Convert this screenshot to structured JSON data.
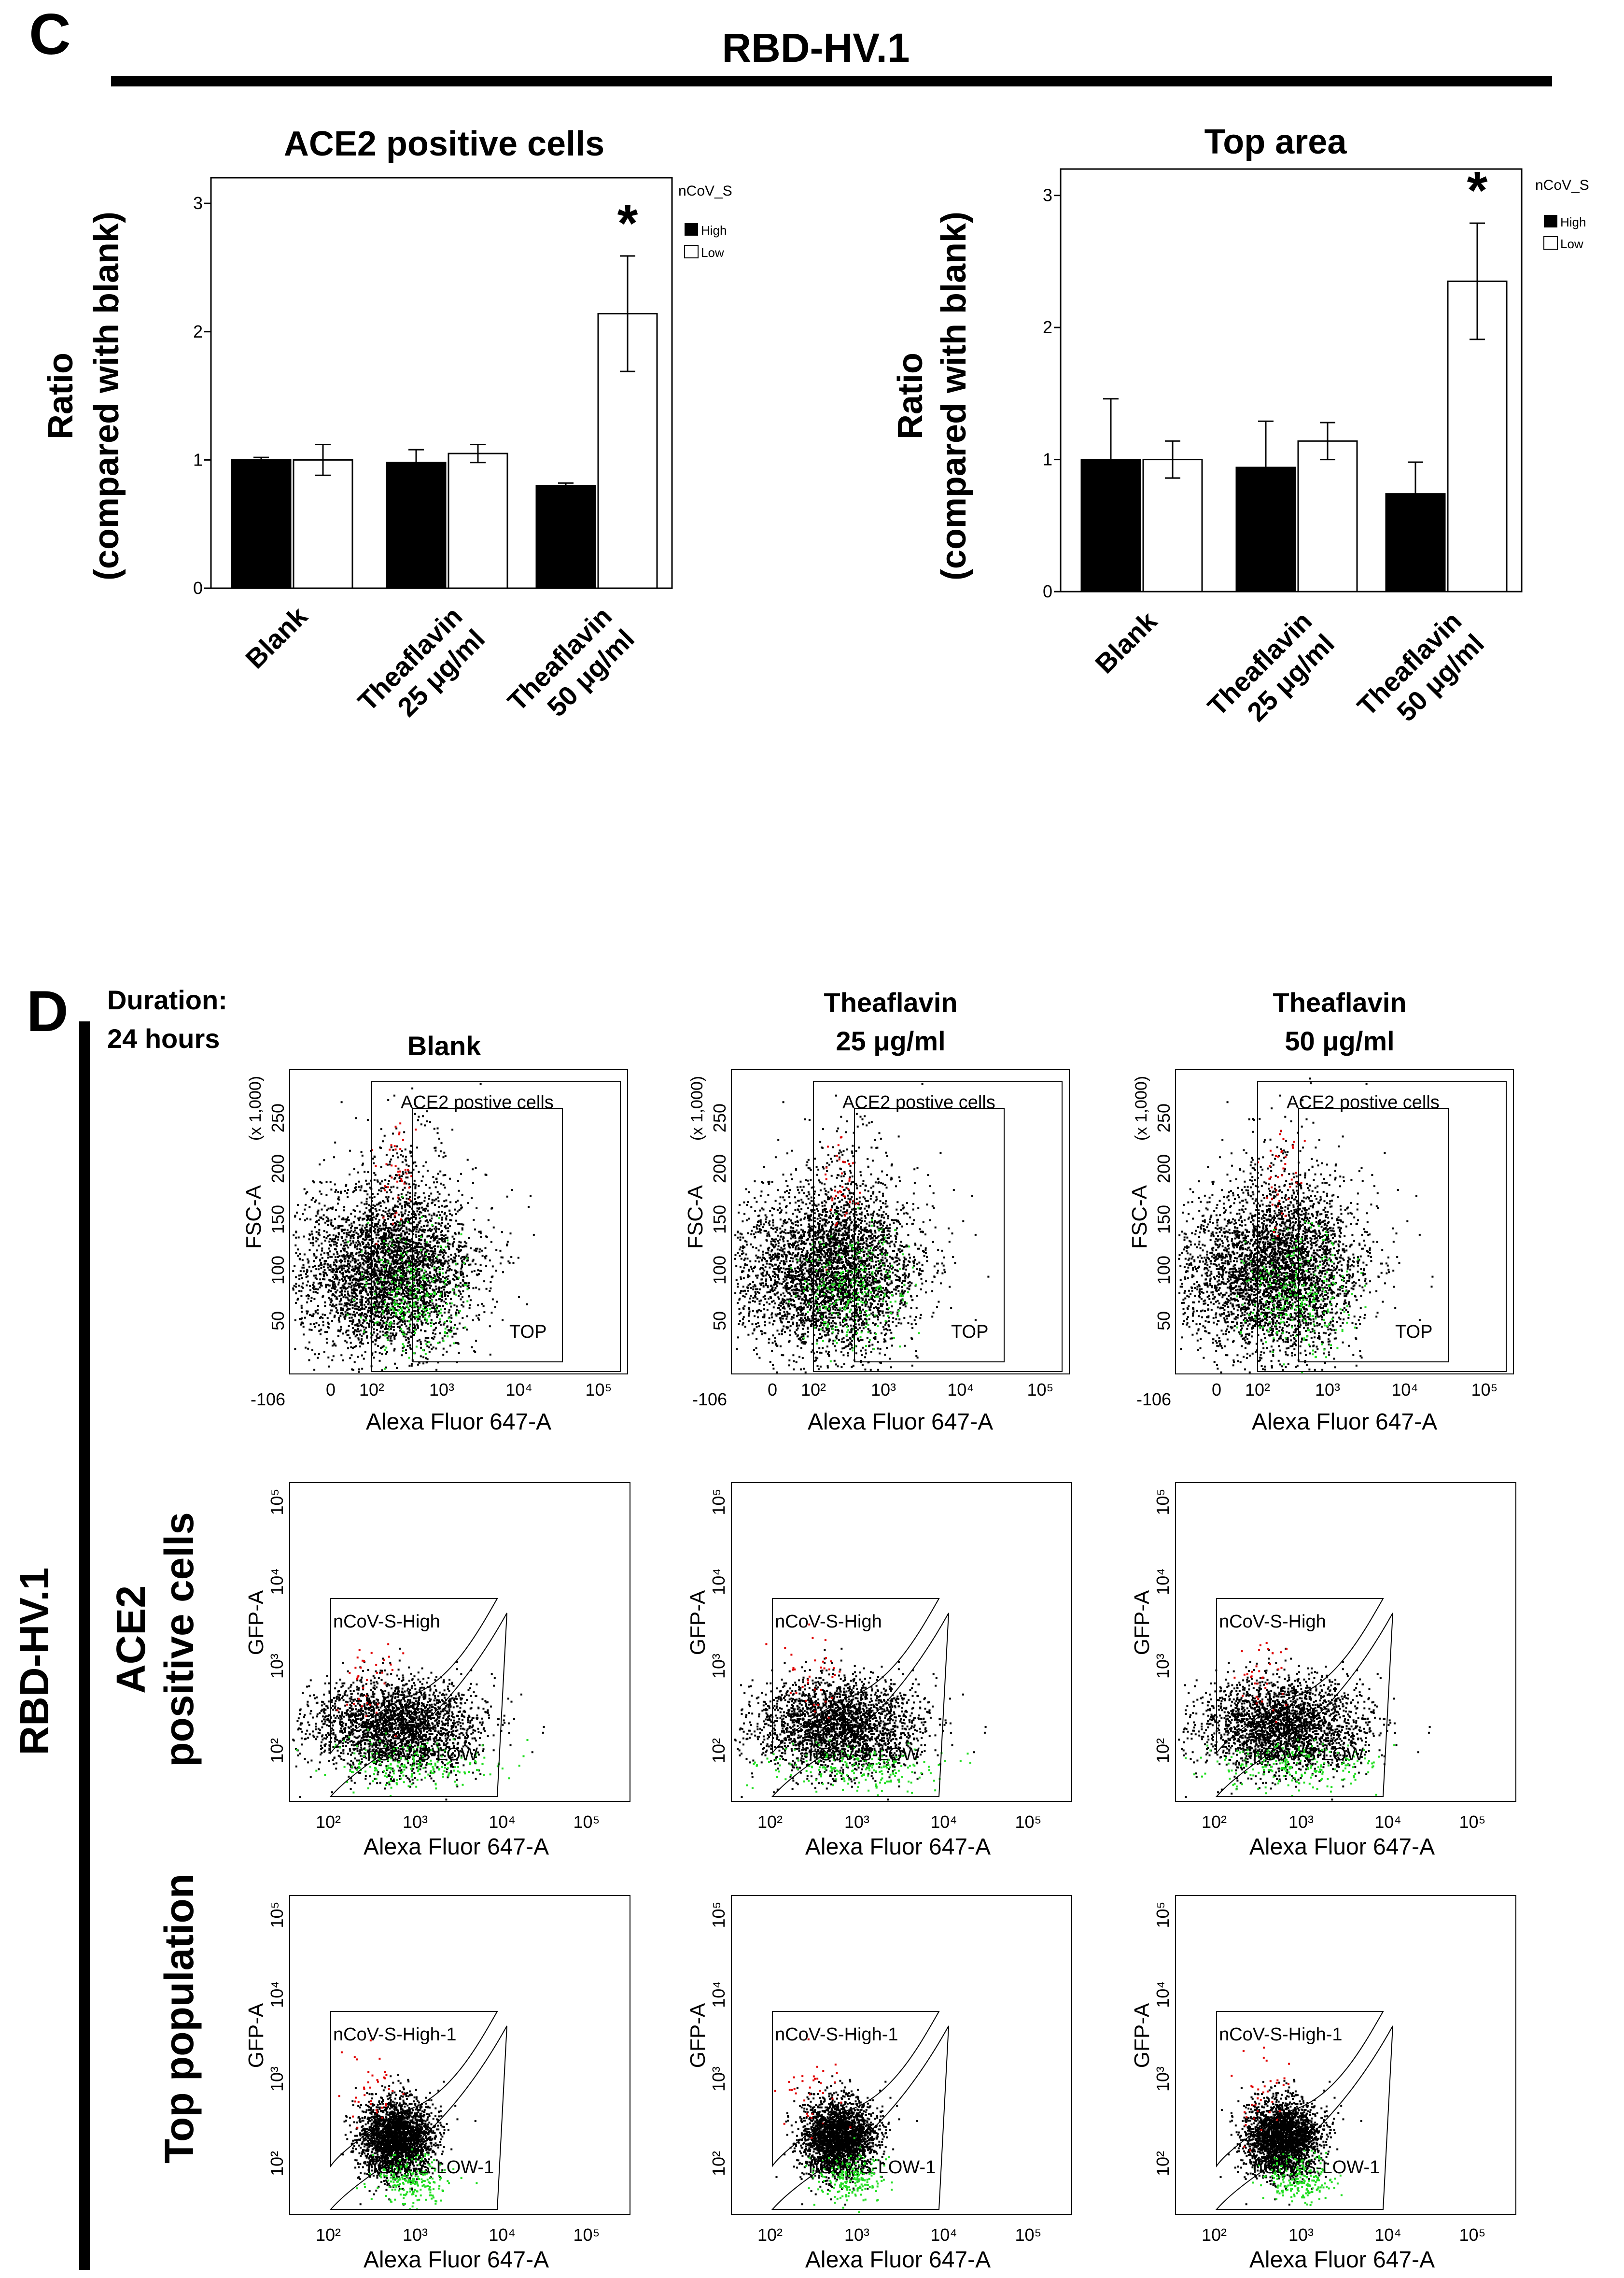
{
  "panel_c": {
    "letter": "C",
    "title": "RBD-HV.1",
    "y_axis_label_line1": "Ratio",
    "y_axis_label_line2": "(compared with blank)",
    "legend_title": "nCoV_S",
    "legend_items": [
      "High",
      "Low"
    ]
  },
  "panel_d": {
    "letter": "D",
    "side_label": "RBD-HV.1",
    "duration_line1": "Duration:",
    "duration_line2": "24 hours",
    "column_headers": [
      {
        "line1": "",
        "line2": "Blank"
      },
      {
        "line1": "Theaflavin",
        "line2": "25 μg/ml"
      },
      {
        "line1": "Theaflavin",
        "line2": "50 μg/ml"
      }
    ],
    "row_labels": [
      {
        "line1": "ACE2",
        "line2": "positive cells"
      },
      {
        "line1": "Top population",
        "line2": ""
      }
    ],
    "scatter_x_label": "Alexa Fluor 647-A",
    "fsc_y_label": "FSC-A",
    "fsc_y_multiplier": "(x 1,000)",
    "fsc_y_ticks": [
      "50",
      "100",
      "150",
      "200",
      "250"
    ],
    "fsc_x_ticks": [
      "-106",
      "0",
      "10²",
      "10³",
      "10⁴",
      "10⁵"
    ],
    "gate_ace2": "ACE2 postive cells",
    "gate_top": "TOP",
    "gfp_y_label": "GFP-A",
    "gfp_y_ticks": [
      "10²",
      "10³",
      "10⁴",
      "10⁵"
    ],
    "gfp_x_ticks": [
      "10²",
      "10³",
      "10⁴",
      "10⁵"
    ],
    "gate_high": "nCoV-S-High",
    "gate_low": "nCoV-S-LOW",
    "gate_high_1": "nCoV-S-High-1",
    "gate_low_1": "nCoV-S-LOW-1"
  },
  "colors": {
    "high_bar": "#000000",
    "low_bar": "#ffffff",
    "dots_black": "#000000",
    "dots_red": "#e00000",
    "dots_green": "#22dd22"
  },
  "chart_data": [
    {
      "type": "bar",
      "title": "ACE2 positive cells",
      "categories": [
        "Blank",
        "Theaflavin 25 μg/ml",
        "Theaflavin 50 μg/ml"
      ],
      "category_lines": [
        [
          "Blank"
        ],
        [
          "Theaflavin",
          "25 μg/ml"
        ],
        [
          "Theaflavin",
          "50 μg/ml"
        ]
      ],
      "series": [
        {
          "name": "High",
          "values": [
            1.0,
            0.98,
            0.8
          ],
          "errors": [
            0.02,
            0.1,
            0.02
          ]
        },
        {
          "name": "Low",
          "values": [
            1.0,
            1.05,
            2.14
          ],
          "errors": [
            0.12,
            0.07,
            0.45
          ]
        }
      ],
      "ylabel": "Ratio (compared with blank)",
      "ylim": [
        0,
        3.2
      ],
      "yticks": [
        "0",
        "1",
        "2",
        "3"
      ],
      "annotation": "*",
      "annotation_category": 2,
      "legend_title": "nCoV_S"
    },
    {
      "type": "bar",
      "title": "Top area",
      "categories": [
        "Blank",
        "Theaflavin 25 μg/ml",
        "Theaflavin 50 μg/ml"
      ],
      "category_lines": [
        [
          "Blank"
        ],
        [
          "Theaflavin",
          "25 μg/ml"
        ],
        [
          "Theaflavin",
          "50 μg/ml"
        ]
      ],
      "series": [
        {
          "name": "High",
          "values": [
            1.0,
            0.94,
            0.74
          ],
          "errors": [
            0.46,
            0.35,
            0.24
          ]
        },
        {
          "name": "Low",
          "values": [
            1.0,
            1.14,
            2.35
          ],
          "errors": [
            0.14,
            0.14,
            0.44
          ]
        }
      ],
      "ylabel": "Ratio (compared with blank)",
      "ylim": [
        0,
        3.2
      ],
      "yticks": [
        "0",
        "1",
        "2",
        "3"
      ],
      "annotation": "*",
      "annotation_category": 2,
      "legend_title": "nCoV_S"
    }
  ]
}
